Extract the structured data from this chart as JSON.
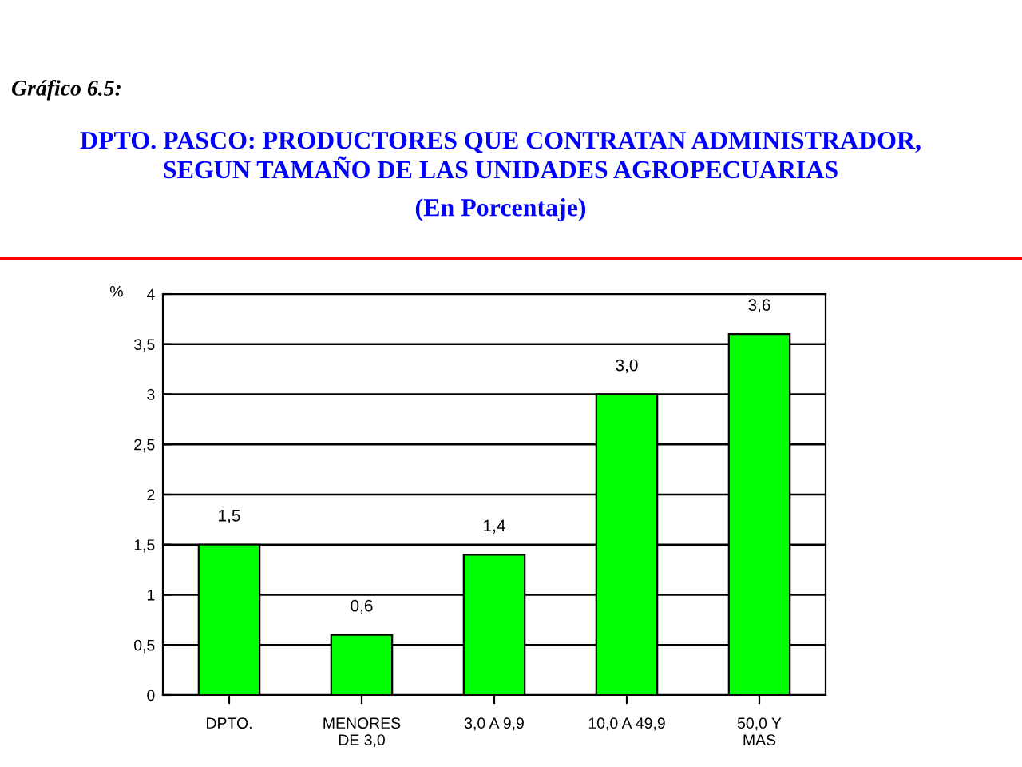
{
  "chart_data": {
    "type": "bar",
    "title": "DPTO. PASCO: PRODUCTORES QUE CONTRATAN ADMINISTRADOR,\nSEGUN TAMAÑO DE LAS UNIDADES AGROPECUARIAS",
    "subtitle": "(En Porcentaje)",
    "annotations": [
      "Gráfico 6.5:"
    ],
    "ylabel": "%",
    "categories": [
      "DPTO.",
      "MENORES\nDE 3,0",
      "3,0 A 9,9",
      "10,0 A 49,9",
      "50,0 Y\nMAS"
    ],
    "values": [
      1.5,
      0.6,
      1.4,
      3.0,
      3.6
    ],
    "value_labels": [
      "1,5",
      "0,6",
      "1,4",
      "3,0",
      "3,6"
    ],
    "color": "#00ff00",
    "ylim": [
      0,
      4
    ],
    "yticks": [
      0,
      {
        "value": 0.5,
        "label": "0,5"
      },
      1,
      {
        "value": 1.5,
        "label": "1,5"
      },
      2,
      {
        "value": 2.5,
        "label": "2,5"
      },
      3,
      {
        "value": 3.5,
        "label": "3,5"
      },
      4
    ],
    "grid": "y"
  }
}
